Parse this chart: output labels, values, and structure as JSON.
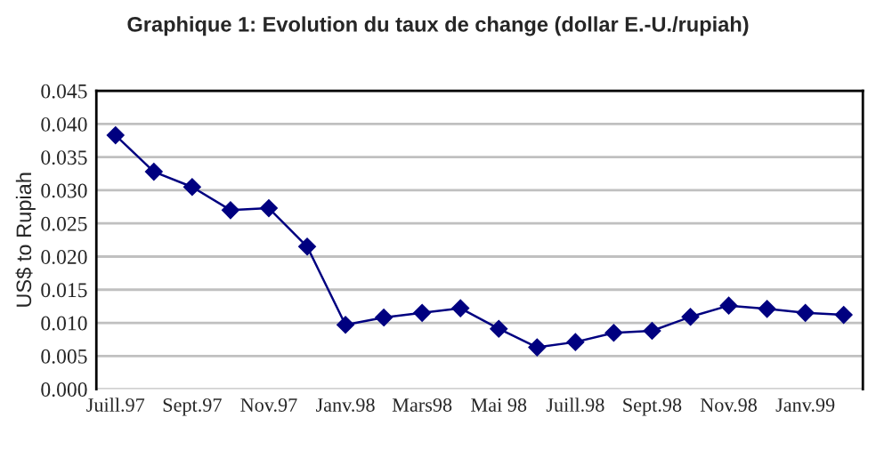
{
  "chart_data": {
    "type": "line",
    "title": "Graphique 1: Evolution du taux de change (dollar E.-U./rupiah)",
    "ylabel": "US$ to Rupiah",
    "categories": [
      "Juill.97",
      null,
      "Sept.97",
      null,
      "Nov.97",
      null,
      "Janv.98",
      null,
      "Mars98",
      null,
      "Mai 98",
      null,
      "Juill.98",
      null,
      "Sept.98",
      null,
      "Nov.98",
      null,
      "Janv.99",
      null
    ],
    "series": [
      {
        "color": "#000080",
        "values": [
          0.0383,
          0.0328,
          0.0305,
          0.027,
          0.0273,
          0.0215,
          0.0097,
          0.0108,
          0.0115,
          0.0122,
          0.0091,
          0.0063,
          0.0071,
          0.0085,
          0.0088,
          0.0109,
          0.0126,
          0.0121,
          0.0115,
          0.0112
        ]
      }
    ],
    "ylim": [
      0,
      0.045
    ],
    "yticks": [
      {
        "value": 0,
        "label": "0.000"
      },
      {
        "value": 0.005,
        "label": "0.005"
      },
      {
        "value": 0.01,
        "label": "0.010"
      },
      {
        "value": 0.015,
        "label": "0.015"
      },
      {
        "value": 0.02,
        "label": "0.020"
      },
      {
        "value": 0.025,
        "label": "0.025"
      },
      {
        "value": 0.03,
        "label": "0.030"
      },
      {
        "value": 0.035,
        "label": "0.035"
      },
      {
        "value": 0.04,
        "label": "0.040"
      },
      {
        "value": 0.045,
        "label": "0.045"
      }
    ],
    "grid": "y",
    "marker": "diamond",
    "line_style": "solid"
  }
}
